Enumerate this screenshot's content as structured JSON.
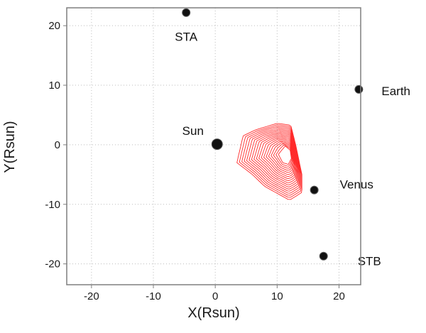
{
  "chart_data": {
    "type": "scatter",
    "title": "",
    "xlabel": "X(Rsun)",
    "ylabel": "Y(Rsun)",
    "xlim": [
      -24,
      23.5
    ],
    "ylim": [
      -23.5,
      23
    ],
    "xticks": [
      -20,
      -10,
      0,
      10,
      20
    ],
    "yticks": [
      -20,
      -10,
      0,
      10,
      20
    ],
    "xtick_labels": [
      "-20",
      "-10",
      "0",
      "10",
      "20"
    ],
    "ytick_labels": [
      "-20",
      "-10",
      "0",
      "10",
      "20"
    ],
    "grid": true,
    "points": [
      {
        "label": "STA",
        "x": -4.7,
        "y": 22.2
      },
      {
        "label": "Earth",
        "x": 23.2,
        "y": 9.3
      },
      {
        "label": "Sun",
        "x": 0.3,
        "y": 0.1
      },
      {
        "label": "Venus",
        "x": 16.0,
        "y": -7.6
      },
      {
        "label": "STB",
        "x": 17.5,
        "y": -18.7
      }
    ],
    "cme_contours": {
      "color": "#ff2a2a",
      "count": 18,
      "outer": [
        [
          3.5,
          -3.0
        ],
        [
          4.5,
          1.5
        ],
        [
          6.5,
          2.5
        ],
        [
          10.0,
          3.6
        ],
        [
          12.2,
          3.3
        ],
        [
          13.0,
          0.0
        ],
        [
          14.0,
          -5.0
        ],
        [
          14.0,
          -8.0
        ],
        [
          12.0,
          -9.3
        ],
        [
          8.0,
          -7.0
        ],
        [
          6.0,
          -5.0
        ],
        [
          3.5,
          -3.0
        ]
      ],
      "inner": [
        [
          10.2,
          -1.6
        ],
        [
          11.3,
          -0.2
        ],
        [
          12.1,
          -0.9
        ],
        [
          12.3,
          -2.3
        ],
        [
          11.8,
          -3.3
        ],
        [
          10.9,
          -3.0
        ],
        [
          10.2,
          -1.6
        ]
      ]
    }
  },
  "colors": {
    "frame": "#7f7f7f",
    "grid": "#bdbdbd",
    "body": "#111111"
  }
}
